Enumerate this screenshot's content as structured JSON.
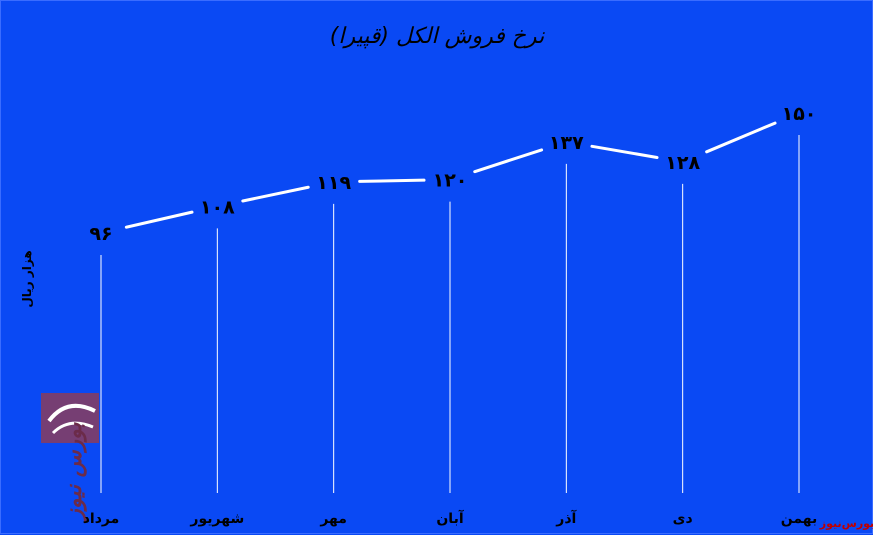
{
  "chart_data": {
    "type": "line",
    "title": "نرخ فروش الکل (قپیرا)",
    "ylabel": "هزار ریال",
    "categories": [
      "مرداد",
      "شهریور",
      "مهر",
      "آبان",
      "آذر",
      "دی",
      "بهمن"
    ],
    "values": [
      96,
      108,
      119,
      120,
      137,
      128,
      150
    ],
    "value_labels": [
      "۹۶",
      "۱۰۸",
      "۱۱۹",
      "۱۲۰",
      "۱۳۷",
      "۱۲۸",
      "۱۵۰"
    ],
    "ylim": [
      0,
      160
    ],
    "grid": false,
    "colors": {
      "background": "#0a49f4",
      "line": "#ffffff",
      "text": "#000000"
    }
  },
  "watermark": {
    "text": "بورس نیوز"
  },
  "brand": {
    "text": "بورس‌نیوز"
  }
}
